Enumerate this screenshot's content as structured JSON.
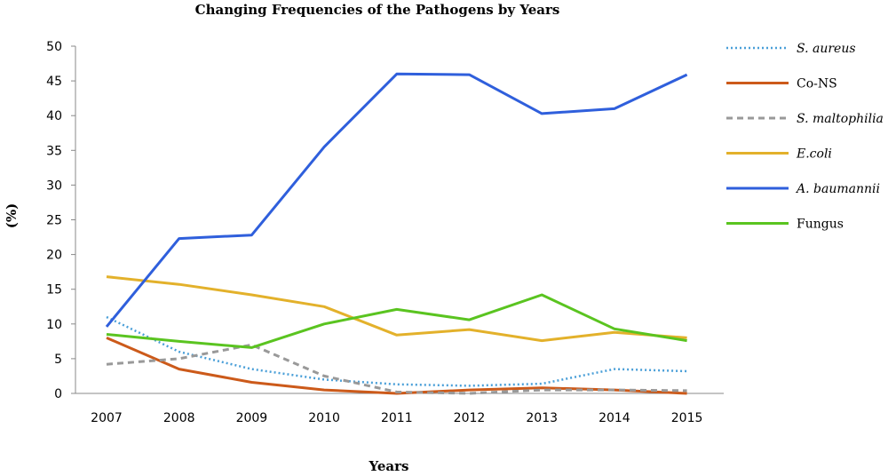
{
  "chart_data": {
    "type": "line",
    "title": "Changing Frequencies of the Pathogens by Years",
    "xlabel": "Years",
    "ylabel": "(%)",
    "x": [
      "2007",
      "2008",
      "2009",
      "2010",
      "2011",
      "2012",
      "2013",
      "2014",
      "2015"
    ],
    "ylim": [
      0,
      50
    ],
    "yticks": [
      0,
      5,
      10,
      15,
      20,
      25,
      30,
      35,
      40,
      45,
      50
    ],
    "grid": false,
    "legend_position": "right",
    "series": [
      {
        "name": "S. aureus",
        "italic": true,
        "color": "#4a9fd8",
        "style": "dotted",
        "values": [
          11,
          6,
          3.5,
          2,
          1.3,
          1.1,
          1.4,
          3.5,
          3.2
        ]
      },
      {
        "name": "Co-NS",
        "italic": false,
        "color": "#cc5a1a",
        "style": "solid",
        "values": [
          8,
          3.5,
          1.6,
          0.5,
          0,
          0.5,
          0.8,
          0.5,
          0
        ]
      },
      {
        "name": "S. maltophilia",
        "italic": true,
        "color": "#999999",
        "style": "dashed",
        "values": [
          4.2,
          5,
          7,
          2.5,
          0.2,
          0,
          0.5,
          0.5,
          0.4
        ]
      },
      {
        "name": "E.coli",
        "italic": true,
        "color": "#e3b12b",
        "style": "solid",
        "values": [
          16.8,
          15.7,
          14.2,
          12.5,
          8.4,
          9.2,
          7.6,
          8.8,
          8
        ]
      },
      {
        "name": "A. baumannii",
        "italic": true,
        "color": "#2f5fdc",
        "style": "solid",
        "values": [
          9.6,
          22.3,
          22.8,
          35.5,
          46,
          45.9,
          40.3,
          41,
          45.9
        ]
      },
      {
        "name": "Fungus",
        "italic": false,
        "color": "#5ac420",
        "style": "solid",
        "values": [
          8.5,
          7.5,
          6.6,
          10,
          12.1,
          10.6,
          14.2,
          9.3,
          7.6
        ]
      }
    ]
  }
}
